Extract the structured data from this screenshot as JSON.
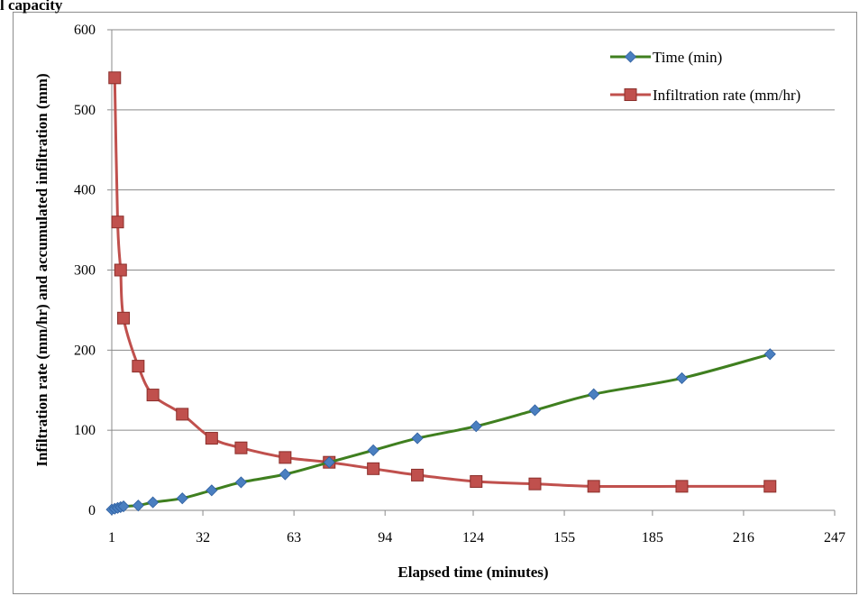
{
  "header": {
    "partial_title": "l capacity"
  },
  "chart_data": {
    "type": "line",
    "title": "",
    "xlabel": "Elapsed time (minutes)",
    "ylabel": "Infiltration rate (mm/hr) and accumulated infiltration (mm)",
    "xlim": [
      1,
      247
    ],
    "ylim": [
      0,
      600
    ],
    "x_ticks": [
      1,
      32,
      63,
      94,
      124,
      155,
      185,
      216,
      247
    ],
    "y_ticks": [
      0,
      100,
      200,
      300,
      400,
      500,
      600
    ],
    "grid": "horizontal",
    "legend_position": "top-right",
    "series": [
      {
        "name": "Time (min)",
        "color": "#3f7f1f",
        "marker": "diamond",
        "marker_color": "#4a7fc0",
        "x": [
          1,
          2,
          3,
          4,
          5,
          10,
          15,
          25,
          35,
          45,
          60,
          75,
          90,
          105,
          125,
          145,
          165,
          195,
          225
        ],
        "y": [
          1,
          2,
          3,
          4,
          5,
          6,
          10,
          15,
          25,
          35,
          45,
          60,
          75,
          90,
          105,
          125,
          145,
          165,
          195
        ]
      },
      {
        "name": "Infiltration rate (mm/hr)",
        "color": "#c0504d",
        "marker": "square",
        "marker_color": "#c0504d",
        "x": [
          2,
          3,
          4,
          5,
          10,
          15,
          25,
          35,
          45,
          60,
          75,
          90,
          105,
          125,
          145,
          165,
          195,
          225
        ],
        "y": [
          540,
          360,
          300,
          240,
          180,
          144,
          120,
          90,
          78,
          66,
          60,
          52,
          44,
          36,
          33,
          30,
          30,
          30
        ]
      }
    ]
  }
}
